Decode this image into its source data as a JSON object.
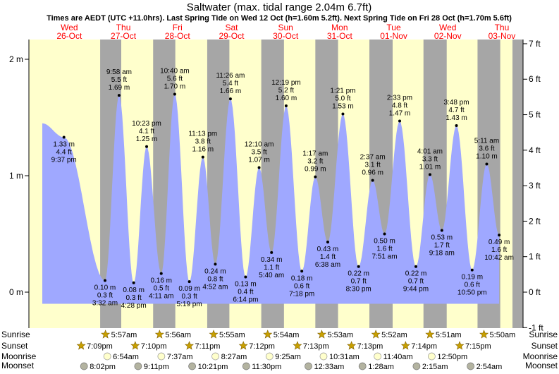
{
  "chart_data": {
    "type": "area",
    "title": "Saltwater (max. tidal range 2.04m 6.7ft)",
    "subtitle": "Times are AEDT (UTC +11.0hrs). Last Spring Tide on Wed 12 Oct (h=1.60m 5.2ft). Next Spring Tide on Fri 28 Oct (h=1.70m 5.6ft)",
    "days": [
      {
        "dow": "Wed",
        "date": "26-Oct"
      },
      {
        "dow": "Thu",
        "date": "27-Oct"
      },
      {
        "dow": "Fri",
        "date": "28-Oct"
      },
      {
        "dow": "Sat",
        "date": "29-Oct"
      },
      {
        "dow": "Sun",
        "date": "30-Oct"
      },
      {
        "dow": "Mon",
        "date": "31-Oct"
      },
      {
        "dow": "Tue",
        "date": "01-Nov"
      },
      {
        "dow": "Wed",
        "date": "02-Nov"
      },
      {
        "dow": "Thu",
        "date": "03-Nov"
      }
    ],
    "y_left": {
      "unit": "m",
      "ylim": [
        -0.2,
        2.1
      ],
      "ticks": [
        "0 m",
        "1 m",
        "2 m"
      ]
    },
    "y_right": {
      "unit": "ft",
      "ticks": [
        "-1 ft",
        "0 ft",
        "1 ft",
        "2 ft",
        "3 ft",
        "4 ft",
        "5 ft",
        "6 ft",
        "7 ft"
      ]
    },
    "tides": [
      {
        "day": 0.0,
        "time": "",
        "ft": "",
        "m": "",
        "h": 1.45,
        "curve_only": true
      },
      {
        "day": 0.4,
        "time": "9:37 pm",
        "ft": "4.4 ft",
        "m": "1.33 m",
        "h": 1.33
      },
      {
        "day": 1.16,
        "time": "3:32 am",
        "ft": "0.3 ft",
        "m": "0.10 m",
        "h": 0.1
      },
      {
        "day": 1.42,
        "time": "9:58 am",
        "ft": "5.5 ft",
        "m": "1.69 m",
        "h": 1.69
      },
      {
        "day": 1.69,
        "time": "4:28 pm",
        "ft": "0.3 ft",
        "m": "0.08 m",
        "h": 0.08
      },
      {
        "day": 1.93,
        "time": "10:23 pm",
        "ft": "4.1 ft",
        "m": "1.25 m",
        "h": 1.25
      },
      {
        "day": 2.2,
        "time": "4:11 am",
        "ft": "0.5 ft",
        "m": "0.16 m",
        "h": 0.16
      },
      {
        "day": 2.45,
        "time": "10:40 am",
        "ft": "5.6 ft",
        "m": "1.70 m",
        "h": 1.7
      },
      {
        "day": 2.72,
        "time": "5:19 pm",
        "ft": "0.3 ft",
        "m": "0.09 m",
        "h": 0.09
      },
      {
        "day": 2.97,
        "time": "11:13 pm",
        "ft": "3.8 ft",
        "m": "1.16 m",
        "h": 1.16
      },
      {
        "day": 3.2,
        "time": "4:52 am",
        "ft": "0.8 ft",
        "m": "0.24 m",
        "h": 0.24
      },
      {
        "day": 3.48,
        "time": "11:26 am",
        "ft": "5.4 ft",
        "m": "1.66 m",
        "h": 1.66
      },
      {
        "day": 3.76,
        "time": "6:14 pm",
        "ft": "0.4 ft",
        "m": "0.13 m",
        "h": 0.13
      },
      {
        "day": 4.01,
        "time": "12:10 am",
        "ft": "3.5 ft",
        "m": "1.07 m",
        "h": 1.07
      },
      {
        "day": 4.24,
        "time": "5:40 am",
        "ft": "1.1 ft",
        "m": "0.34 m",
        "h": 0.34
      },
      {
        "day": 4.51,
        "time": "12:19 pm",
        "ft": "5.2 ft",
        "m": "1.60 m",
        "h": 1.6
      },
      {
        "day": 4.8,
        "time": "7:18 pm",
        "ft": "0.6 ft",
        "m": "0.18 m",
        "h": 0.18
      },
      {
        "day": 5.05,
        "time": "1:17 am",
        "ft": "3.2 ft",
        "m": "0.99 m",
        "h": 0.99
      },
      {
        "day": 5.28,
        "time": "6:38 am",
        "ft": "1.4 ft",
        "m": "0.43 m",
        "h": 0.43
      },
      {
        "day": 5.56,
        "time": "1:21 pm",
        "ft": "5.0 ft",
        "m": "1.53 m",
        "h": 1.53
      },
      {
        "day": 5.85,
        "time": "8:30 pm",
        "ft": "0.7 ft",
        "m": "0.22 m",
        "h": 0.22
      },
      {
        "day": 6.11,
        "time": "2:37 am",
        "ft": "3.1 ft",
        "m": "0.96 m",
        "h": 0.96
      },
      {
        "day": 6.33,
        "time": "7:51 am",
        "ft": "1.6 ft",
        "m": "0.50 m",
        "h": 0.5
      },
      {
        "day": 6.61,
        "time": "2:33 pm",
        "ft": "4.8 ft",
        "m": "1.47 m",
        "h": 1.47
      },
      {
        "day": 6.91,
        "time": "9:44 pm",
        "ft": "0.7 ft",
        "m": "0.22 m",
        "h": 0.22
      },
      {
        "day": 7.17,
        "time": "4:01 am",
        "ft": "3.3 ft",
        "m": "1.01 m",
        "h": 1.01
      },
      {
        "day": 7.39,
        "time": "9:18 am",
        "ft": "1.7 ft",
        "m": "0.53 m",
        "h": 0.53
      },
      {
        "day": 7.66,
        "time": "3:48 pm",
        "ft": "4.7 ft",
        "m": "1.43 m",
        "h": 1.43
      },
      {
        "day": 7.95,
        "time": "10:50 pm",
        "ft": "0.6 ft",
        "m": "0.19 m",
        "h": 0.19
      },
      {
        "day": 8.22,
        "time": "5:11 am",
        "ft": "3.6 ft",
        "m": "1.10 m",
        "h": 1.1
      },
      {
        "day": 8.45,
        "time": "10:42 am",
        "ft": "1.6 ft",
        "m": "0.49 m",
        "h": 0.49
      }
    ],
    "sun": [
      {
        "sunrise": "5:57am",
        "sunset": "7:09pm"
      },
      {
        "sunrise": "5:56am",
        "sunset": "7:10pm"
      },
      {
        "sunrise": "5:55am",
        "sunset": "7:11pm"
      },
      {
        "sunrise": "5:54am",
        "sunset": "7:12pm"
      },
      {
        "sunrise": "5:53am",
        "sunset": "7:13pm"
      },
      {
        "sunrise": "5:52am",
        "sunset": "7:13pm"
      },
      {
        "sunrise": "5:51am",
        "sunset": "7:14pm"
      },
      {
        "sunrise": "5:50am",
        "sunset": "7:15pm"
      }
    ],
    "moonrise": [
      "6:54am",
      "7:37am",
      "8:27am",
      "9:25am",
      "10:31am",
      "11:40am",
      "12:50pm"
    ],
    "moonset": [
      "8:02pm",
      "9:11pm",
      "10:21pm",
      "11:30pm",
      "12:33am",
      "1:28am",
      "2:15am",
      "2:54am"
    ],
    "row_labels": {
      "sunrise": "Sunrise",
      "sunset": "Sunset",
      "moonrise": "Moonrise",
      "moonset": "Moonset"
    },
    "colors": {
      "day": "#ffffcc",
      "night": "#a6a6a6",
      "tide": "#9fa8ff",
      "title": "#000000",
      "date_header": "#ff0000",
      "sun_icon": "#c8a000",
      "moon_rise": "#ffffcc",
      "moon_set": "#b3b3a0"
    }
  }
}
